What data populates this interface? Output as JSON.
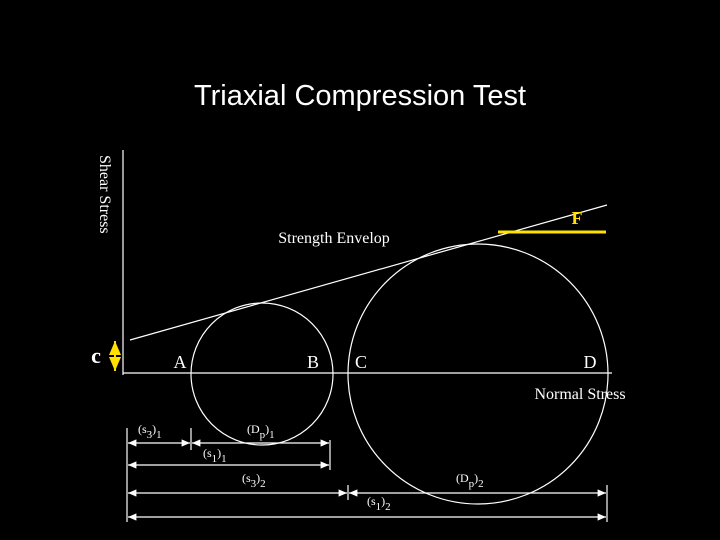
{
  "title": "Triaxial Compression Test",
  "axes": {
    "y_label": "Shear Stress",
    "x_label": "Normal Stress"
  },
  "cohesion": "c",
  "envelope": {
    "label": "Strength Envelop",
    "angle_label": "F"
  },
  "points": [
    "A",
    "B",
    "C",
    "D"
  ],
  "measurements": [
    {
      "segments": [
        {
          "text": "(s"
        },
        {
          "text": "3",
          "sub": true
        },
        {
          "text": ")"
        },
        {
          "text": "1",
          "sub": true
        }
      ]
    },
    {
      "segments": [
        {
          "text": "(D"
        },
        {
          "text": "p",
          "sub": true
        },
        {
          "text": ")"
        },
        {
          "text": "1",
          "sub": true
        }
      ]
    },
    {
      "segments": [
        {
          "text": "(s"
        },
        {
          "text": "1",
          "sub": true
        },
        {
          "text": ")"
        },
        {
          "text": "1",
          "sub": true
        }
      ]
    },
    {
      "segments": [
        {
          "text": "(s"
        },
        {
          "text": "3",
          "sub": true
        },
        {
          "text": ")"
        },
        {
          "text": "2",
          "sub": true
        }
      ]
    },
    {
      "segments": [
        {
          "text": "(D"
        },
        {
          "text": "p",
          "sub": true
        },
        {
          "text": ")"
        },
        {
          "text": "2",
          "sub": true
        }
      ]
    },
    {
      "segments": [
        {
          "text": "(s"
        },
        {
          "text": "1",
          "sub": true
        },
        {
          "text": ")"
        },
        {
          "text": "2",
          "sub": true
        }
      ]
    }
  ]
}
